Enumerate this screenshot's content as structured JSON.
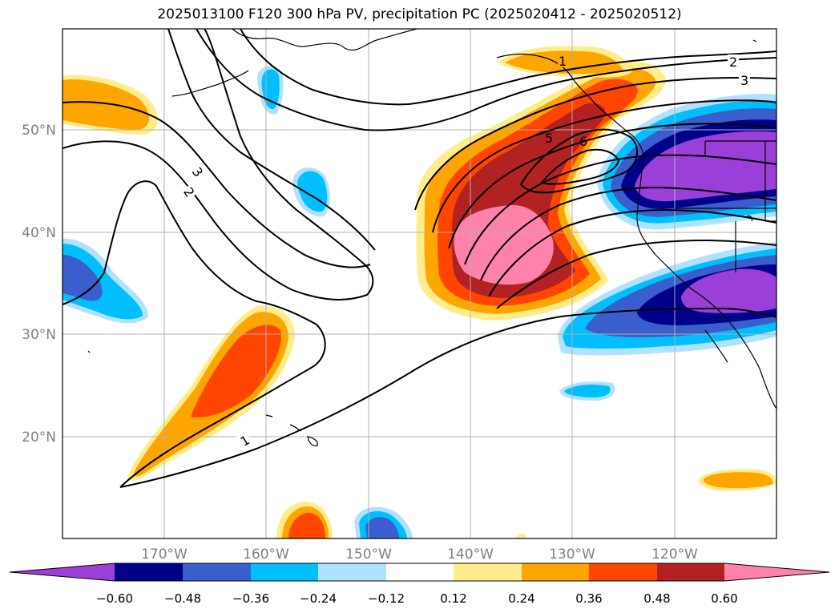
{
  "title": "2025013100 F120 300 hPa PV, precipitation PC (2025020412 - 2025020512)",
  "axes": {
    "lat_labels": [
      "50°N",
      "40°N",
      "30°N",
      "20°N"
    ],
    "lon_labels": [
      "170°W",
      "160°W",
      "150°W",
      "140°W",
      "130°W",
      "120°W"
    ],
    "lat_range": [
      10,
      60
    ],
    "lon_range": [
      -180,
      -110
    ],
    "grid": true
  },
  "contours": {
    "variable": "300 hPa PV",
    "labels": [
      "1",
      "1",
      "2",
      "2",
      "3",
      "3",
      "5",
      "6"
    ]
  },
  "colorbar": {
    "tick_labels": [
      "−0.60",
      "−0.48",
      "−0.36",
      "−0.24",
      "−0.12",
      "0.12",
      "0.24",
      "0.36",
      "0.48",
      "0.60"
    ],
    "colors": {
      "lt_neg060": "#9A3FD8",
      "neg060_neg048": "#00008B",
      "neg048_neg036": "#3A5FCD",
      "neg036_neg024": "#00BFFF",
      "neg024_neg012": "#B0E2FF",
      "neg012_012": "#FFFFFF",
      "p012_p024": "#FFEC8B",
      "p024_p036": "#FFA500",
      "p036_p048": "#FF4500",
      "p048_p060": "#B22222",
      "gt_p060": "#FF82AB"
    }
  }
}
